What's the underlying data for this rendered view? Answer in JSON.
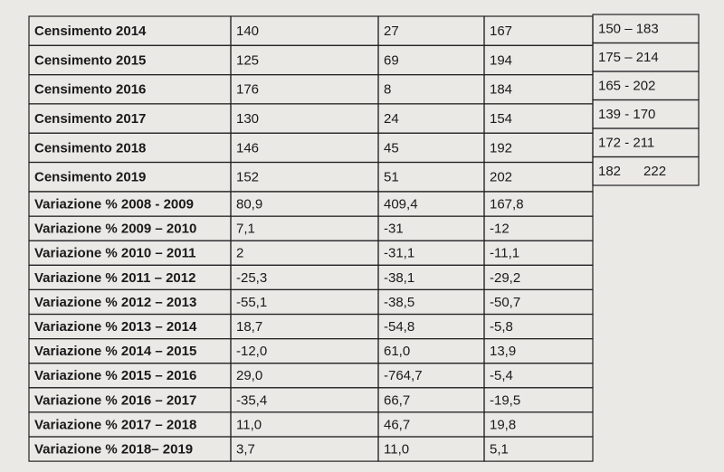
{
  "table": {
    "rows": [
      [
        "Censimento 2014",
        "140",
        "27",
        "167",
        "150 – 183"
      ],
      [
        "Censimento 2015",
        "125",
        "69",
        "194",
        "175 – 214"
      ],
      [
        "Censimento 2016",
        "176",
        "8",
        "184",
        "165 - 202"
      ],
      [
        "Censimento 2017",
        "130",
        "24",
        "154",
        "139 - 170"
      ],
      [
        "Censimento 2018",
        "146",
        "45",
        "192",
        "172 - 211"
      ],
      [
        "Censimento 2019",
        "152",
        "51",
        "202",
        "182      222"
      ],
      [
        "Variazione % 2008 - 2009",
        "80,9",
        "409,4",
        "167,8"
      ],
      [
        "Variazione % 2009 – 2010",
        "7,1",
        "-31",
        "-12"
      ],
      [
        "Variazione % 2010 – 2011",
        "2",
        "-31,1",
        "-11,1"
      ],
      [
        "Variazione % 2011 – 2012",
        "-25,3",
        "-38,1",
        "-29,2"
      ],
      [
        "Variazione % 2012 – 2013",
        "-55,1",
        "-38,5",
        "-50,7"
      ],
      [
        "Variazione % 2013 – 2014",
        "18,7",
        "-54,8",
        "-5,8"
      ],
      [
        "Variazione % 2014 – 2015",
        "-12,0",
        "61,0",
        "13,9"
      ],
      [
        "Variazione % 2015 – 2016",
        "29,0",
        "-764,7",
        "-5,4"
      ],
      [
        "Variazione % 2016 – 2017",
        "-35,4",
        "66,7",
        "-19,5"
      ],
      [
        "Variazione % 2017 – 2018",
        "11,0",
        "46,7",
        "19,8"
      ],
      [
        "Variazione % 2018– 2019",
        "3,7",
        "11,0",
        "5,1"
      ]
    ]
  }
}
